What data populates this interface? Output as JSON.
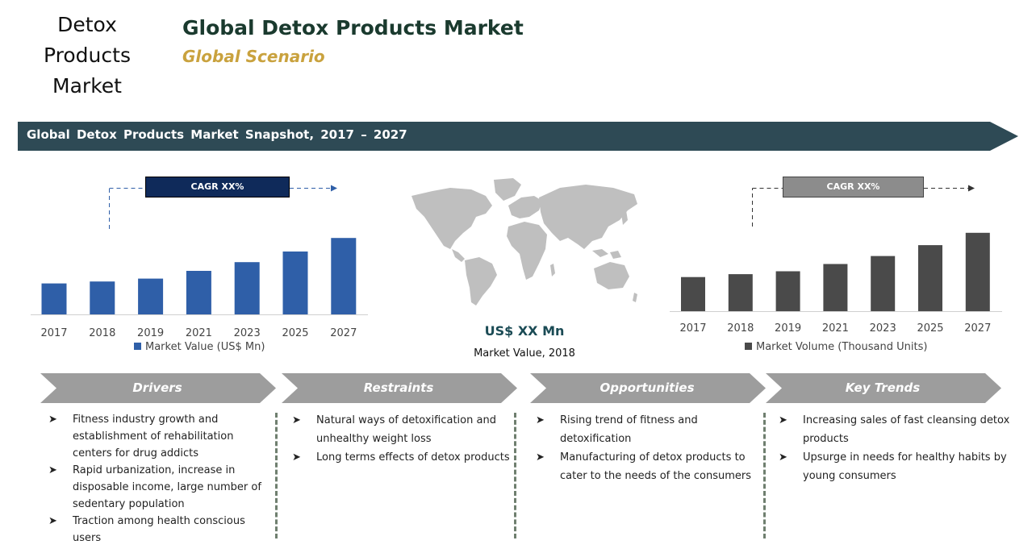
{
  "header": {
    "side_title": [
      "Detox",
      "Products",
      "Market"
    ],
    "main_title": "Global Detox Products Market",
    "subtitle": "Global Scenario"
  },
  "snapshot_title": "Global Detox Products Market Snapshot, 2017 – 2027",
  "center": {
    "value": "US$ XX Mn",
    "label": "Market Value, 2018"
  },
  "colors": {
    "dark_teal": "#2e4a55",
    "value_bar": "#2f5fa8",
    "volume_bar": "#4a4a4a",
    "cagr_left": "#0f2a5a",
    "cagr_right": "#8c8c8c",
    "chevron": "#9d9d9d",
    "map": "#bfbfbf"
  },
  "icons": {
    "bullet": "arrow-bullet-icon",
    "map": "world-map-icon"
  },
  "chart_data": [
    {
      "type": "bar",
      "cagr_label": "CAGR XX%",
      "categories": [
        "2017",
        "2018",
        "2019",
        "2021",
        "2023",
        "2025",
        "2027"
      ],
      "series": [
        {
          "name": "Market Value (US$ Mn)",
          "values": [
            32,
            34,
            37,
            45,
            54,
            65,
            79
          ]
        }
      ],
      "ylim": [
        0,
        100
      ],
      "grid": false,
      "legend": "bottom"
    },
    {
      "type": "bar",
      "cagr_label": "CAGR XX%",
      "categories": [
        "2017",
        "2018",
        "2019",
        "2021",
        "2023",
        "2025",
        "2027"
      ],
      "series": [
        {
          "name": "Market Volume (Thousand Units)",
          "values": [
            47,
            51,
            55,
            65,
            76,
            91,
            108
          ]
        }
      ],
      "ylim": [
        0,
        120
      ],
      "grid": false,
      "legend": "bottom"
    }
  ],
  "sections": [
    {
      "title": "Drivers",
      "items": [
        "Fitness industry growth and establishment of rehabilitation centers for drug addicts",
        "Rapid urbanization, increase in disposable income, large number of sedentary population",
        "Traction among health conscious users"
      ]
    },
    {
      "title": "Restraints",
      "items": [
        "Natural ways of detoxification and unhealthy weight loss",
        "Long terms effects of detox products"
      ]
    },
    {
      "title": "Opportunities",
      "items": [
        "Rising trend of fitness and detoxification",
        "Manufacturing of detox products to cater to the needs of the consumers"
      ]
    },
    {
      "title": "Key Trends",
      "items": [
        "Increasing sales of fast cleansing detox products",
        "Upsurge in needs for healthy habits by young consumers"
      ]
    }
  ]
}
